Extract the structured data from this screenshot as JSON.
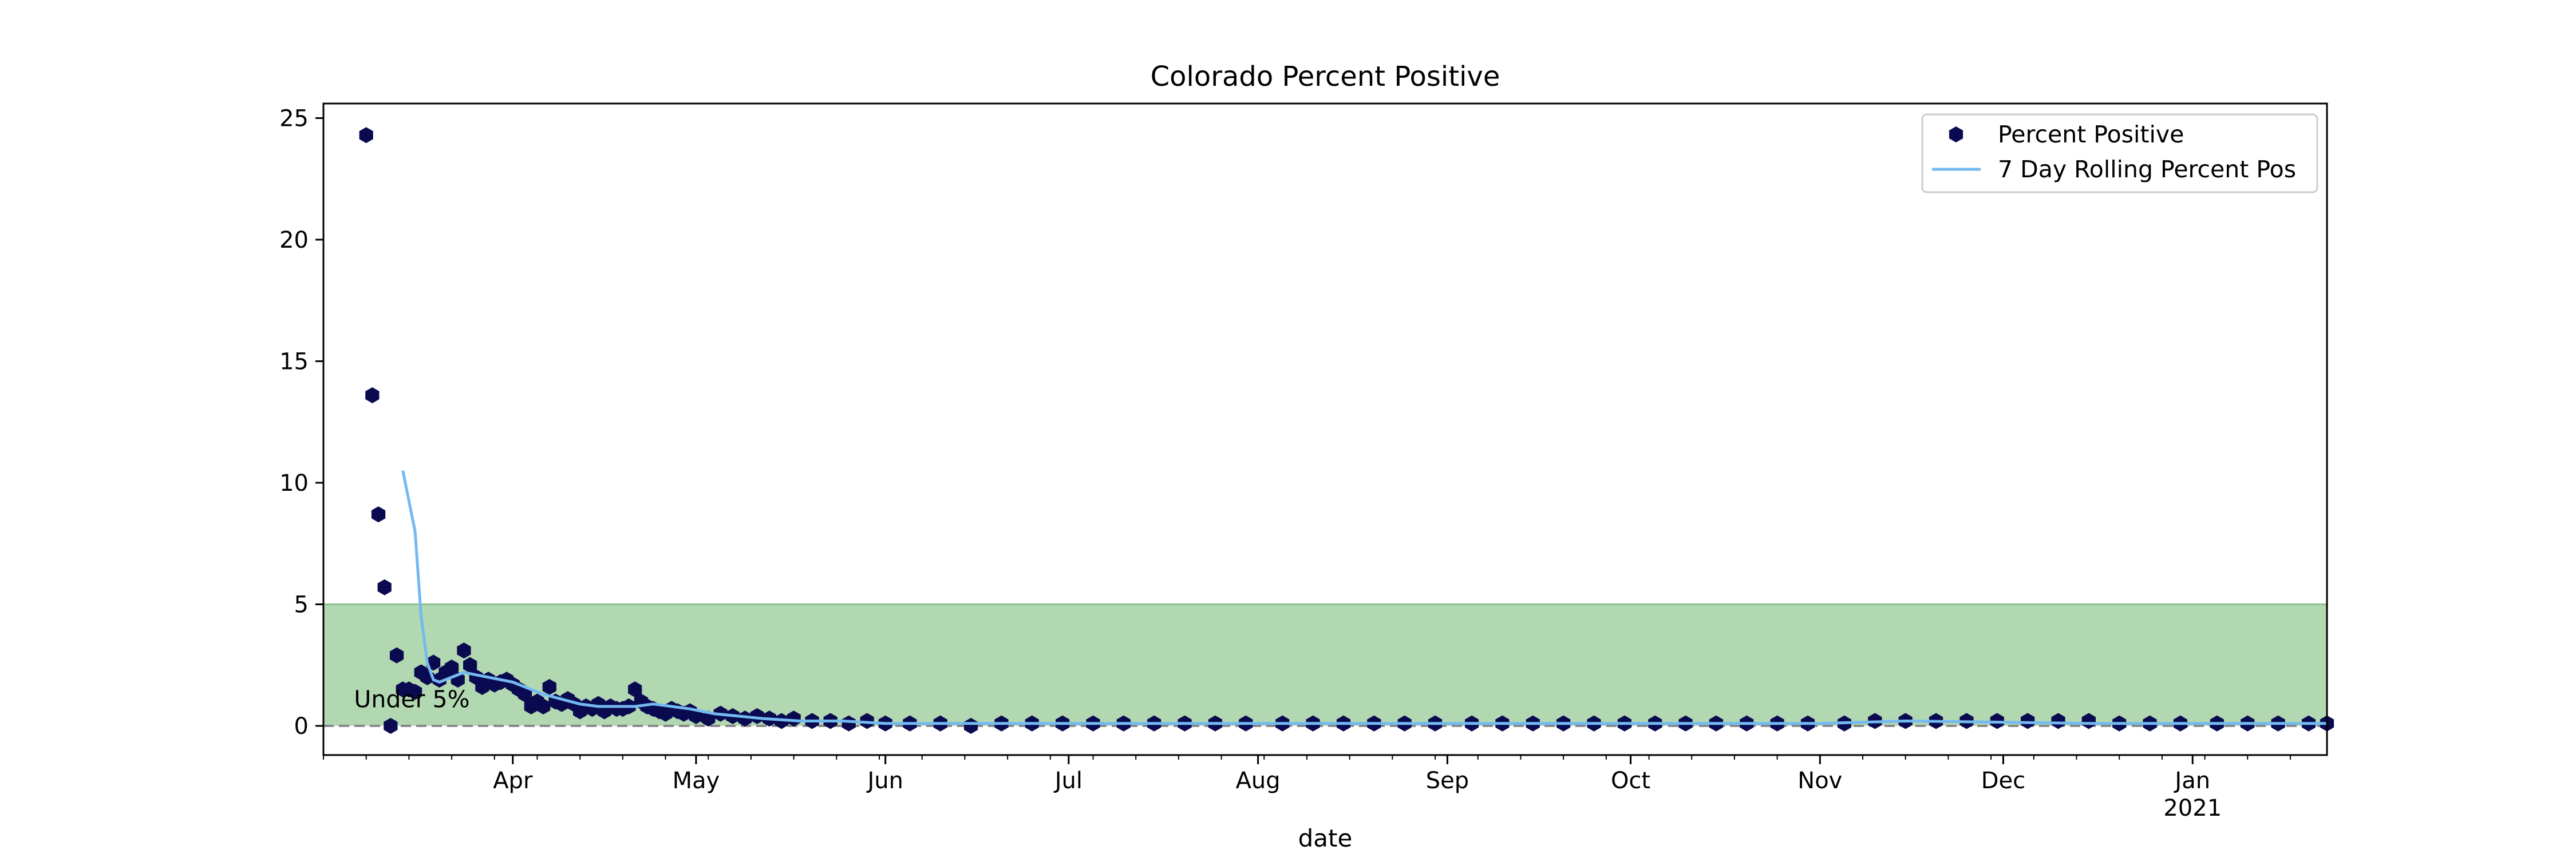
{
  "chart_data": {
    "type": "scatter",
    "title": "Colorado Percent Positive",
    "xlabel": "date",
    "ylabel": "",
    "x_range": [
      "2020-03-01",
      "2021-01-23"
    ],
    "ylim": [
      -1.2,
      25.6
    ],
    "yticks": [
      0,
      5,
      10,
      15,
      20,
      25
    ],
    "xticks": [
      {
        "date": "2020-04-01",
        "label": "Apr"
      },
      {
        "date": "2020-05-01",
        "label": "May"
      },
      {
        "date": "2020-06-01",
        "label": "Jun"
      },
      {
        "date": "2020-07-01",
        "label": "Jul"
      },
      {
        "date": "2020-08-01",
        "label": "Aug"
      },
      {
        "date": "2020-09-01",
        "label": "Sep"
      },
      {
        "date": "2020-10-01",
        "label": "Oct"
      },
      {
        "date": "2020-11-01",
        "label": "Nov"
      },
      {
        "date": "2020-12-01",
        "label": "Dec"
      },
      {
        "date": "2021-01-01",
        "label": "Jan",
        "sublabel": "2021"
      }
    ],
    "grid": false,
    "legend_position": "top-right",
    "legend": [
      "Percent Positive",
      "7 Day Rolling Percent Pos"
    ],
    "colors": {
      "points": "#0a0a50",
      "rolling_line": "#74b9f0",
      "band": "#b2d8b2",
      "band_edge": "#8cc08c",
      "threshold_line": "#888888"
    },
    "shaded_band": {
      "y_from": 0,
      "y_to": 5
    },
    "threshold_line": {
      "y": 0
    },
    "annotation": {
      "text": "Under 5%",
      "date": "2020-03-06",
      "y": 1.1
    },
    "series": [
      {
        "name": "Percent Positive",
        "kind": "points",
        "x": [
          "2020-03-08",
          "2020-03-09",
          "2020-03-10",
          "2020-03-11",
          "2020-03-12",
          "2020-03-13",
          "2020-03-14",
          "2020-03-15",
          "2020-03-16",
          "2020-03-17",
          "2020-03-18",
          "2020-03-19",
          "2020-03-20",
          "2020-03-21",
          "2020-03-22",
          "2020-03-23",
          "2020-03-24",
          "2020-03-25",
          "2020-03-26",
          "2020-03-27",
          "2020-03-28",
          "2020-03-29",
          "2020-03-30",
          "2020-03-31",
          "2020-04-01",
          "2020-04-02",
          "2020-04-03",
          "2020-04-04",
          "2020-04-05",
          "2020-04-06",
          "2020-04-07",
          "2020-04-08",
          "2020-04-09",
          "2020-04-10",
          "2020-04-11",
          "2020-04-12",
          "2020-04-13",
          "2020-04-14",
          "2020-04-15",
          "2020-04-16",
          "2020-04-17",
          "2020-04-18",
          "2020-04-19",
          "2020-04-20",
          "2020-04-21",
          "2020-04-22",
          "2020-04-23",
          "2020-04-24",
          "2020-04-25",
          "2020-04-26",
          "2020-04-27",
          "2020-04-28",
          "2020-04-29",
          "2020-04-30",
          "2020-05-01",
          "2020-05-03",
          "2020-05-05",
          "2020-05-07",
          "2020-05-09",
          "2020-05-11",
          "2020-05-13",
          "2020-05-15",
          "2020-05-17",
          "2020-05-20",
          "2020-05-23",
          "2020-05-26",
          "2020-05-29",
          "2020-06-01",
          "2020-06-05",
          "2020-06-10",
          "2020-06-15",
          "2020-06-20",
          "2020-06-25",
          "2020-06-30",
          "2020-07-05",
          "2020-07-10",
          "2020-07-15",
          "2020-07-20",
          "2020-07-25",
          "2020-07-30",
          "2020-08-05",
          "2020-08-10",
          "2020-08-15",
          "2020-08-20",
          "2020-08-25",
          "2020-08-30",
          "2020-09-05",
          "2020-09-10",
          "2020-09-15",
          "2020-09-20",
          "2020-09-25",
          "2020-09-30",
          "2020-10-05",
          "2020-10-10",
          "2020-10-15",
          "2020-10-20",
          "2020-10-25",
          "2020-10-30",
          "2020-11-05",
          "2020-11-10",
          "2020-11-15",
          "2020-11-20",
          "2020-11-25",
          "2020-11-30",
          "2020-12-05",
          "2020-12-10",
          "2020-12-15",
          "2020-12-20",
          "2020-12-25",
          "2020-12-30",
          "2021-01-05",
          "2021-01-10",
          "2021-01-15",
          "2021-01-20",
          "2021-01-23"
        ],
        "y": [
          24.3,
          13.6,
          8.7,
          5.7,
          0.0,
          2.9,
          1.5,
          1.5,
          1.4,
          2.2,
          2.0,
          2.6,
          1.9,
          2.2,
          2.4,
          1.9,
          3.1,
          2.5,
          2.0,
          1.6,
          1.9,
          1.7,
          1.8,
          1.9,
          1.7,
          1.5,
          1.3,
          0.8,
          1.0,
          0.8,
          1.6,
          1.0,
          0.9,
          1.1,
          0.9,
          0.6,
          0.8,
          0.7,
          0.9,
          0.6,
          0.8,
          0.7,
          0.7,
          0.8,
          1.5,
          1.0,
          0.8,
          0.7,
          0.6,
          0.5,
          0.7,
          0.6,
          0.5,
          0.6,
          0.4,
          0.3,
          0.5,
          0.4,
          0.3,
          0.4,
          0.3,
          0.2,
          0.3,
          0.2,
          0.2,
          0.1,
          0.2,
          0.1,
          0.1,
          0.1,
          0.0,
          0.1,
          0.1,
          0.1,
          0.1,
          0.1,
          0.1,
          0.1,
          0.1,
          0.1,
          0.1,
          0.1,
          0.1,
          0.1,
          0.1,
          0.1,
          0.1,
          0.1,
          0.1,
          0.1,
          0.1,
          0.1,
          0.1,
          0.1,
          0.1,
          0.1,
          0.1,
          0.1,
          0.1,
          0.2,
          0.2,
          0.2,
          0.2,
          0.2,
          0.2,
          0.2,
          0.2,
          0.1,
          0.1,
          0.1,
          0.1,
          0.1,
          0.1,
          0.1,
          0.1
        ]
      },
      {
        "name": "7 Day Rolling Percent Pos",
        "kind": "line",
        "x": [
          "2020-03-14",
          "2020-03-16",
          "2020-03-17",
          "2020-03-18",
          "2020-03-19",
          "2020-03-20",
          "2020-03-22",
          "2020-03-24",
          "2020-03-26",
          "2020-03-28",
          "2020-03-30",
          "2020-04-01",
          "2020-04-03",
          "2020-04-06",
          "2020-04-09",
          "2020-04-12",
          "2020-04-15",
          "2020-04-18",
          "2020-04-21",
          "2020-04-24",
          "2020-04-27",
          "2020-04-30",
          "2020-05-04",
          "2020-05-08",
          "2020-05-12",
          "2020-05-18",
          "2020-05-25",
          "2020-06-01",
          "2020-06-15",
          "2020-07-01",
          "2020-07-15",
          "2020-08-01",
          "2020-08-15",
          "2020-09-01",
          "2020-09-15",
          "2020-10-01",
          "2020-10-15",
          "2020-11-01",
          "2020-11-15",
          "2020-12-01",
          "2020-12-15",
          "2021-01-01",
          "2021-01-15",
          "2021-01-23"
        ],
        "y": [
          10.5,
          8.0,
          4.5,
          2.6,
          1.9,
          1.8,
          2.0,
          2.2,
          2.1,
          2.0,
          1.9,
          1.8,
          1.6,
          1.3,
          1.1,
          0.9,
          0.8,
          0.8,
          0.8,
          0.9,
          0.8,
          0.7,
          0.5,
          0.4,
          0.3,
          0.2,
          0.2,
          0.1,
          0.1,
          0.1,
          0.1,
          0.1,
          0.1,
          0.1,
          0.1,
          0.1,
          0.1,
          0.1,
          0.2,
          0.15,
          0.1,
          0.1,
          0.1,
          0.1
        ]
      }
    ]
  }
}
